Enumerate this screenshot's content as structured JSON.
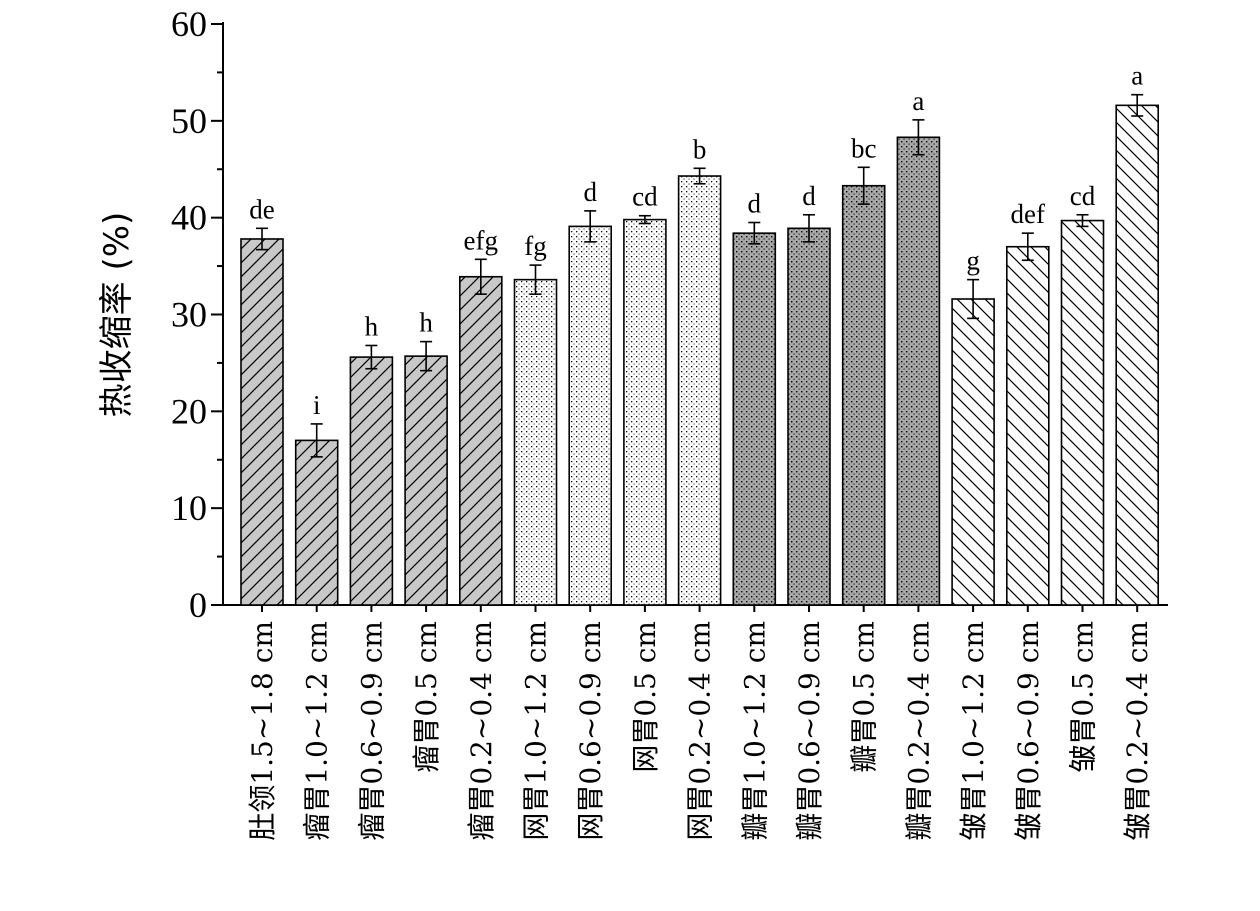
{
  "chart_data": {
    "type": "bar",
    "ylabel": "热收缩率 (%)",
    "ylim": [
      0,
      60
    ],
    "yticks": [
      0,
      10,
      20,
      30,
      40,
      50,
      60
    ],
    "grid": false,
    "legend": "none",
    "categories": [
      "肚领1.5~1.8 cm",
      "瘤胃1.0~1.2 cm",
      "瘤胃0.6~0.9 cm",
      "瘤胃0.5 cm",
      "瘤胃0.2~0.4 cm",
      "网胃1.0~1.2 cm",
      "网胃0.6~0.9 cm",
      "网胃0.5 cm",
      "网胃0.2~0.4 cm",
      "瓣胃1.0~1.2 cm",
      "瓣胃0.6~0.9 cm",
      "瓣胃0.5 cm",
      "瓣胃0.2~0.4 cm",
      "皱胃1.0~1.2 cm",
      "皱胃0.6~0.9 cm",
      "皱胃0.5 cm",
      "皱胃0.2~0.4 cm"
    ],
    "values": [
      37.8,
      17.0,
      25.6,
      25.7,
      33.9,
      33.6,
      39.1,
      39.8,
      44.3,
      38.4,
      38.9,
      43.3,
      48.3,
      31.6,
      37.0,
      39.7,
      51.6
    ],
    "errors": [
      1.1,
      1.7,
      1.2,
      1.5,
      1.8,
      1.5,
      1.6,
      0.4,
      0.8,
      1.1,
      1.4,
      1.9,
      1.8,
      2.0,
      1.4,
      0.6,
      1.1
    ],
    "significance": [
      "de",
      "i",
      "h",
      "h",
      "efg",
      "fg",
      "d",
      "cd",
      "b",
      "d",
      "d",
      "bc",
      "a",
      "g",
      "def",
      "cd",
      "a"
    ],
    "groups": [
      "肚领",
      "瘤胃",
      "瘤胃",
      "瘤胃",
      "瘤胃",
      "网胃",
      "网胃",
      "网胃",
      "网胃",
      "瓣胃",
      "瓣胃",
      "瓣胃",
      "瓣胃",
      "皱胃",
      "皱胃",
      "皱胃",
      "皱胃"
    ],
    "group_fills": {
      "肚领": "diag-grey",
      "瘤胃": "diag-grey",
      "网胃": "dots-white",
      "瓣胃": "dots-grey",
      "皱胃": "backdiag-white"
    },
    "colors": {
      "grey_fill": "#c8c8c8",
      "axis": "#000000",
      "bar_edge": "#000000"
    }
  }
}
